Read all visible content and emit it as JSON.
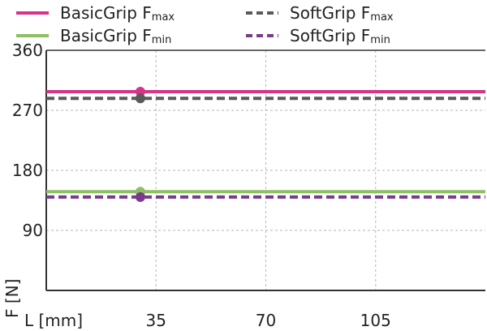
{
  "chart_data": {
    "type": "line",
    "xlabel": "L [mm]",
    "ylabel": "F [N]",
    "xlim": [
      0,
      140
    ],
    "ylim": [
      0,
      360
    ],
    "x_ticks": [
      "35",
      "70",
      "105"
    ],
    "x_tick_values": [
      35,
      70,
      105
    ],
    "y_ticks": [
      "360",
      "270",
      "180",
      "90"
    ],
    "y_tick_values": [
      360,
      270,
      180,
      90
    ],
    "grid": true,
    "legend_position": "top",
    "series": [
      {
        "name_main": "BasicGrip F",
        "name_sub": "max",
        "value": 298,
        "marker_x": 30,
        "color": "#d6338a",
        "style": "solid"
      },
      {
        "name_main": "SoftGrip F",
        "name_sub": "max",
        "value": 288,
        "marker_x": 30,
        "color": "#5a5a5a",
        "style": "dashed"
      },
      {
        "name_main": "BasicGrip F",
        "name_sub": "min",
        "value": 148,
        "marker_x": 30,
        "color": "#8cc063",
        "style": "solid"
      },
      {
        "name_main": "SoftGrip F",
        "name_sub": "min",
        "value": 140,
        "marker_x": 30,
        "color": "#7b3a8c",
        "style": "dashed"
      }
    ]
  }
}
